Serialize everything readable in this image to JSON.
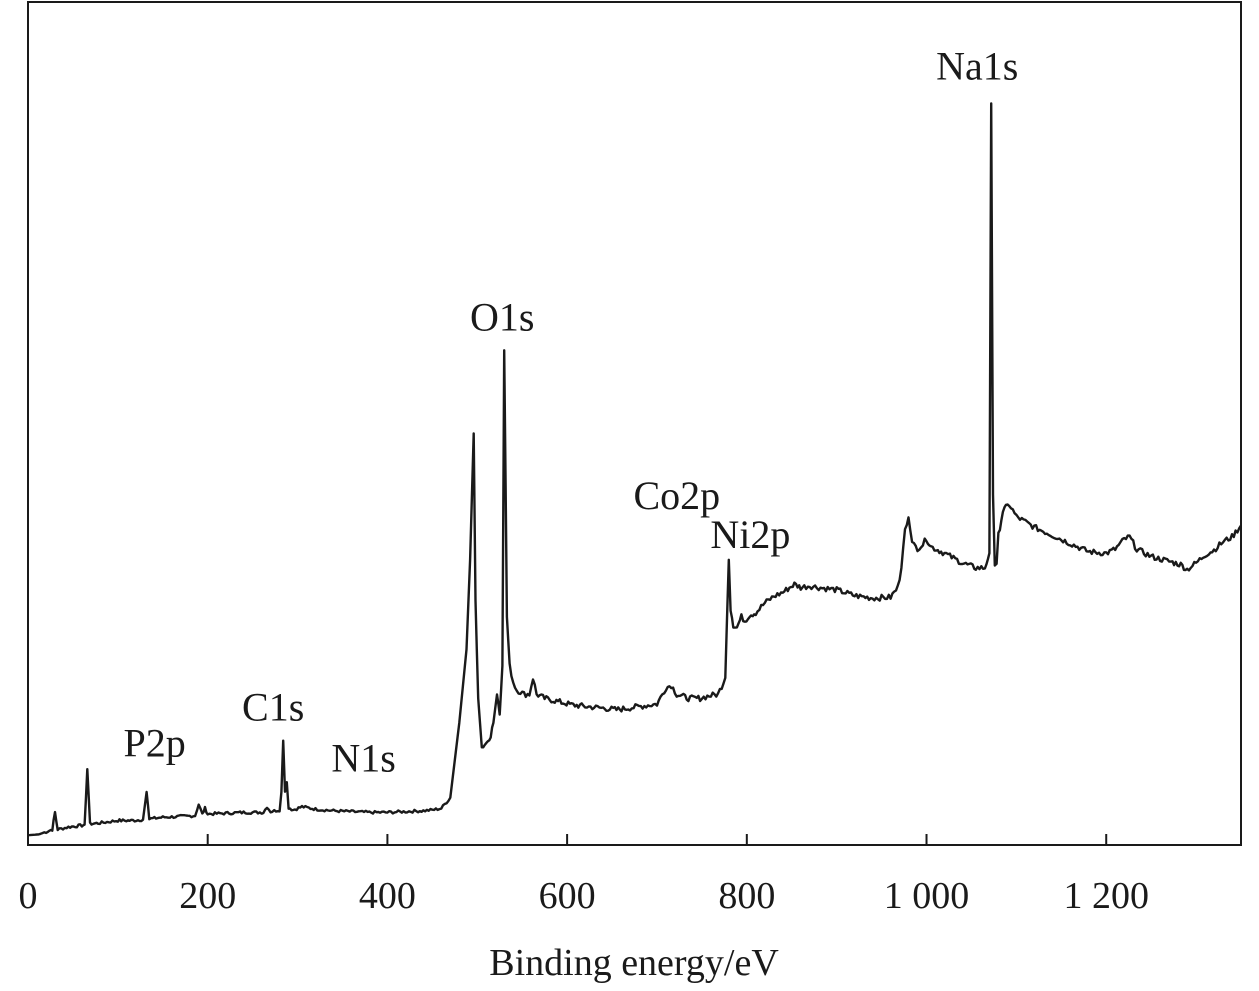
{
  "chart_data": {
    "type": "line",
    "title": "",
    "xlabel": "Binding energy/eV",
    "ylabel": "",
    "xlim": [
      0,
      1350
    ],
    "ylim": [
      0,
      100
    ],
    "x_ticks": [
      0,
      200,
      400,
      600,
      800,
      1000,
      1200
    ],
    "x_tick_labels": [
      "0",
      "200",
      "400",
      "600",
      "800",
      "1 000",
      "1 200"
    ],
    "y_ticks": false,
    "grid": false,
    "legend": "none",
    "line_color": "#1a1a1a",
    "annotations": [
      {
        "text": "P2p",
        "x": 132,
        "y": 7.9
      },
      {
        "text": "C1s",
        "x": 284,
        "y": 12.8
      },
      {
        "text": "N1s",
        "x": 398,
        "y": 6.8
      },
      {
        "text": "O1s",
        "x": 530,
        "y": 60.7
      },
      {
        "text": "Co2p",
        "x": 780,
        "y": 38.3
      },
      {
        "text": "Ni2p",
        "x": 853,
        "y": 34.7
      },
      {
        "text": "Na1s",
        "x": 1072,
        "y": 93.2
      }
    ],
    "series": [
      {
        "values": [
          [
            0,
            1.2
          ],
          [
            12,
            1.3
          ],
          [
            22,
            1.7
          ],
          [
            27,
            1.9
          ],
          [
            30,
            4.0
          ],
          [
            33,
            1.9
          ],
          [
            45,
            2.2
          ],
          [
            60,
            2.4
          ],
          [
            63,
            2.5
          ],
          [
            66,
            9.3
          ],
          [
            69,
            2.6
          ],
          [
            80,
            2.7
          ],
          [
            100,
            3.0
          ],
          [
            115,
            3.0
          ],
          [
            128,
            3.1
          ],
          [
            132,
            6.5
          ],
          [
            135,
            3.2
          ],
          [
            150,
            3.4
          ],
          [
            170,
            3.5
          ],
          [
            186,
            3.6
          ],
          [
            190,
            5.0
          ],
          [
            194,
            3.8
          ],
          [
            197,
            4.5
          ],
          [
            200,
            3.8
          ],
          [
            220,
            3.9
          ],
          [
            240,
            4.0
          ],
          [
            262,
            4.0
          ],
          [
            266,
            4.7
          ],
          [
            270,
            4.1
          ],
          [
            280,
            4.3
          ],
          [
            282,
            6.5
          ],
          [
            284,
            12.8
          ],
          [
            286,
            6.5
          ],
          [
            288,
            7.7
          ],
          [
            290,
            4.6
          ],
          [
            295,
            4.3
          ],
          [
            305,
            4.7
          ],
          [
            320,
            4.4
          ],
          [
            340,
            4.2
          ],
          [
            360,
            4.1
          ],
          [
            380,
            4.0
          ],
          [
            400,
            4.0
          ],
          [
            420,
            4.1
          ],
          [
            440,
            4.2
          ],
          [
            450,
            4.3
          ],
          [
            460,
            4.5
          ],
          [
            470,
            5.8
          ],
          [
            480,
            15.0
          ],
          [
            488,
            24.0
          ],
          [
            492,
            35.0
          ],
          [
            496,
            50.5
          ],
          [
            498,
            30.0
          ],
          [
            501,
            18.0
          ],
          [
            505,
            12.0
          ],
          [
            510,
            12.5
          ],
          [
            515,
            13.5
          ],
          [
            518,
            15.0
          ],
          [
            522,
            18.5
          ],
          [
            525,
            16.0
          ],
          [
            528,
            22.0
          ],
          [
            530,
            60.7
          ],
          [
            533,
            28.0
          ],
          [
            536,
            22.0
          ],
          [
            540,
            20.0
          ],
          [
            544,
            19.0
          ],
          [
            548,
            18.8
          ],
          [
            552,
            18.5
          ],
          [
            558,
            18.5
          ],
          [
            562,
            20.5
          ],
          [
            566,
            18.5
          ],
          [
            575,
            18.0
          ],
          [
            590,
            17.6
          ],
          [
            605,
            17.2
          ],
          [
            620,
            17.0
          ],
          [
            640,
            16.8
          ],
          [
            655,
            16.6
          ],
          [
            668,
            16.8
          ],
          [
            700,
            17.3
          ],
          [
            710,
            19.3
          ],
          [
            716,
            19.6
          ],
          [
            722,
            18.5
          ],
          [
            735,
            18.0
          ],
          [
            748,
            18.0
          ],
          [
            758,
            18.3
          ],
          [
            768,
            18.5
          ],
          [
            776,
            20.5
          ],
          [
            780,
            35.0
          ],
          [
            782,
            29.0
          ],
          [
            785,
            27.0
          ],
          [
            789,
            26.7
          ],
          [
            794,
            28.0
          ],
          [
            798,
            27.5
          ],
          [
            803,
            28.2
          ],
          [
            810,
            28.5
          ],
          [
            820,
            29.7
          ],
          [
            830,
            30.5
          ],
          [
            840,
            31.0
          ],
          [
            853,
            32.0
          ],
          [
            860,
            31.6
          ],
          [
            870,
            31.8
          ],
          [
            880,
            31.6
          ],
          [
            900,
            31.3
          ],
          [
            920,
            30.6
          ],
          [
            940,
            30.3
          ],
          [
            960,
            30.4
          ],
          [
            968,
            31.6
          ],
          [
            972,
            34.0
          ],
          [
            976,
            39.0
          ],
          [
            980,
            40.2
          ],
          [
            984,
            37.0
          ],
          [
            990,
            36.4
          ],
          [
            996,
            36.9
          ],
          [
            1000,
            37.6
          ],
          [
            1005,
            36.6
          ],
          [
            1020,
            35.8
          ],
          [
            1040,
            34.6
          ],
          [
            1055,
            34.0
          ],
          [
            1065,
            34.0
          ],
          [
            1070,
            35.8
          ],
          [
            1072,
            91.0
          ],
          [
            1074,
            43.0
          ],
          [
            1076,
            34.0
          ],
          [
            1078,
            34.5
          ],
          [
            1080,
            38.0
          ],
          [
            1085,
            41.0
          ],
          [
            1092,
            41.8
          ],
          [
            1100,
            40.3
          ],
          [
            1120,
            39.0
          ],
          [
            1140,
            38.0
          ],
          [
            1160,
            37.0
          ],
          [
            1180,
            36.0
          ],
          [
            1200,
            35.8
          ],
          [
            1210,
            36.3
          ],
          [
            1220,
            37.5
          ],
          [
            1226,
            37.8
          ],
          [
            1234,
            36.3
          ],
          [
            1250,
            35.4
          ],
          [
            1270,
            34.8
          ],
          [
            1283,
            34.4
          ],
          [
            1290,
            33.8
          ],
          [
            1300,
            34.6
          ],
          [
            1310,
            35.6
          ],
          [
            1320,
            36.2
          ],
          [
            1330,
            37.2
          ],
          [
            1340,
            37.8
          ],
          [
            1350,
            39.2
          ]
        ]
      }
    ]
  }
}
